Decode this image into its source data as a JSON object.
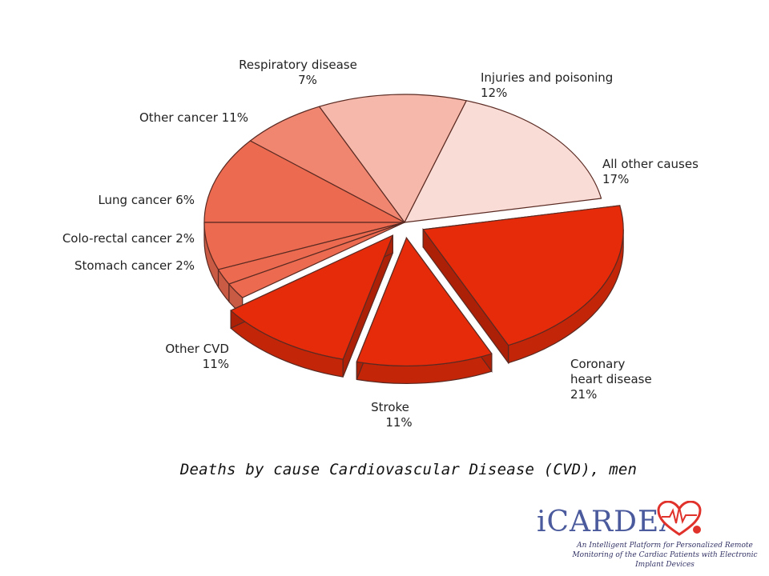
{
  "chart_data": {
    "type": "pie",
    "title": "",
    "slices": [
      {
        "label": "Coronary\nheart disease",
        "value": 21,
        "display": "21%",
        "color": "#e52b0a",
        "exploded": true
      },
      {
        "label": "Stroke",
        "value": 11,
        "display": "11%",
        "color": "#e52b0a",
        "exploded": true
      },
      {
        "label": "Other CVD",
        "value": 11,
        "display": "11%",
        "color": "#e52b0a",
        "exploded": true
      },
      {
        "label": "Stomach cancer",
        "value": 2,
        "display": "2%",
        "color": "#ec6a4f",
        "exploded": false
      },
      {
        "label": "Colo-rectal cancer",
        "value": 2,
        "display": "2%",
        "color": "#ec6a4f",
        "exploded": false
      },
      {
        "label": "Lung cancer",
        "value": 6,
        "display": "6%",
        "color": "#ec6a4f",
        "exploded": false
      },
      {
        "label": "Other cancer",
        "value": 11,
        "display": "11%",
        "color": "#ec6a4f",
        "exploded": false
      },
      {
        "label": "Respiratory disease",
        "value": 7,
        "display": "7%",
        "color": "#f08670",
        "exploded": false
      },
      {
        "label": "Injuries and poisoning",
        "value": 12,
        "display": "12%",
        "color": "#f6b8aa",
        "exploded": false
      },
      {
        "label": "All other causes",
        "value": 17,
        "display": "17%",
        "color": "#fadcd6",
        "exploded": false
      }
    ]
  },
  "labels": {
    "chd": {
      "line1": "Coronary",
      "line2": "heart disease",
      "line3": "21%"
    },
    "stroke": {
      "line1": "Stroke",
      "line2": "11%"
    },
    "other_cvd": {
      "line1": "Other CVD",
      "line2": "11%"
    },
    "stomach": "Stomach cancer 2%",
    "colorectal": "Colo-rectal cancer 2%",
    "lung": "Lung cancer 6%",
    "other_cancer": "Other cancer 11%",
    "respiratory": {
      "line1": "Respiratory disease",
      "line2": "7%"
    },
    "injuries": {
      "line1": "Injuries and poisoning",
      "line2": "12%"
    },
    "all_other": {
      "line1": "All other causes",
      "line2": "17%"
    }
  },
  "caption": "Deaths by cause Cardiovascular Disease (CVD), men",
  "logo": {
    "wordmark": "iCARDEA",
    "tagline_1": "An Intelligent Platform for Personalized Remote",
    "tagline_2": "Monitoring of the Cardiac Patients with Electronic",
    "tagline_3": "Implant Devices"
  },
  "colors": {
    "cvd": "#e52b0a",
    "cancer": "#ec6a4f",
    "respiratory": "#f08670",
    "injuries": "#f6b8aa",
    "other": "#fadcd6",
    "outline": "#5a2a22",
    "logo_blue": "#4a5a9c",
    "logo_red": "#e0322b"
  }
}
